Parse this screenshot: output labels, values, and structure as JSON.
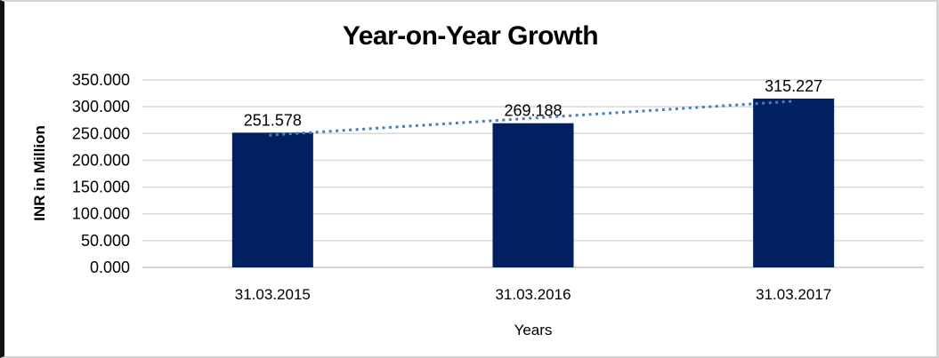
{
  "chart_data": {
    "type": "bar",
    "title": "Year-on-Year Growth",
    "xlabel": "Years",
    "ylabel": "INR in Million",
    "categories": [
      "31.03.2015",
      "31.03.2016",
      "31.03.2017"
    ],
    "values": [
      251.578,
      269.188,
      315.227
    ],
    "data_labels": [
      "251.578",
      "269.188",
      "315.227"
    ],
    "ylim": [
      0,
      350
    ],
    "ytick_step": 50,
    "ytick_labels": [
      "0.000",
      "50.000",
      "100.000",
      "150.000",
      "200.000",
      "250.000",
      "300.000",
      "350.000"
    ],
    "grid": "horizontal",
    "legend_position": "none",
    "bar_color": "#002060",
    "gridline_color": "#d9d9d9",
    "axis_line_color": "#c6c6c6",
    "trendline": {
      "type": "linear",
      "style": "dotted",
      "color": "#4a7ebb"
    }
  }
}
